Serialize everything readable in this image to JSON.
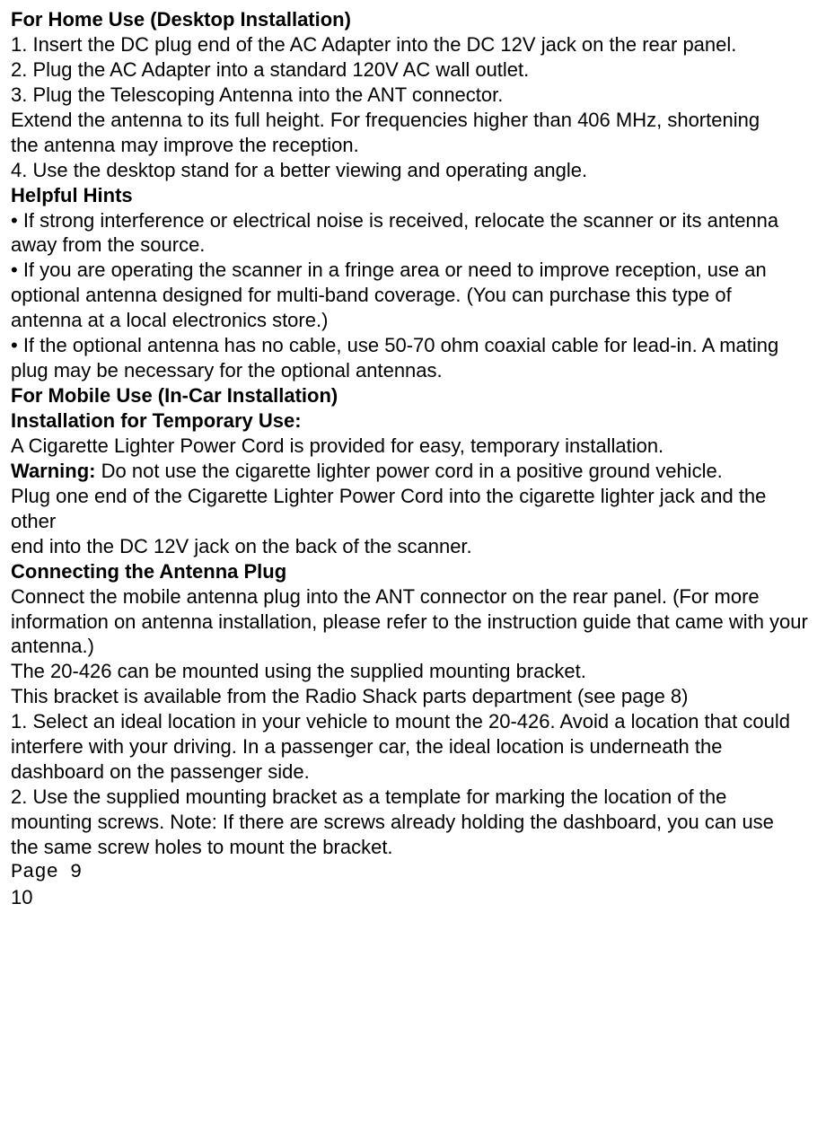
{
  "lines": [
    {
      "text": "For Home Use (Desktop Installation)",
      "bold": true
    },
    {
      "text": "1. Insert the DC plug end of the AC Adapter into the DC 12V jack on the rear panel."
    },
    {
      "text": "2. Plug the AC Adapter into a standard 120V AC wall outlet."
    },
    {
      "text": "3. Plug the Telescoping Antenna into the ANT connector."
    },
    {
      "text": "Extend the antenna to its full height. For frequencies higher than 406 MHz, shortening"
    },
    {
      "text": "the antenna may improve the reception."
    },
    {
      "text": "4. Use the desktop stand for a better viewing and operating angle."
    },
    {
      "text": "Helpful Hints",
      "bold": true
    },
    {
      "text": "• If strong interference or electrical noise is received, relocate the scanner or its antenna"
    },
    {
      "text": "away from the source."
    },
    {
      "text": "• If you are operating the scanner in a fringe area or need to improve reception, use an"
    },
    {
      "text": "optional antenna designed for multi-band coverage. (You can purchase this type of"
    },
    {
      "text": "antenna at a local electronics store.)"
    },
    {
      "text": "• If the optional antenna has no cable, use 50-70 ohm coaxial cable for lead-in. A mating"
    },
    {
      "text": "plug may be necessary for the optional antennas."
    },
    {
      "text": "For Mobile Use (In-Car Installation)",
      "bold": true
    },
    {
      "text": "Installation for Temporary Use:",
      "bold": true
    },
    {
      "text": "A Cigarette Lighter Power Cord is provided for easy, temporary installation."
    },
    {
      "boldPrefix": "Warning: ",
      "text": "Do not use the cigarette lighter power cord in a positive ground vehicle."
    },
    {
      "text": "Plug one end of the Cigarette Lighter Power Cord into the cigarette lighter jack and the other"
    },
    {
      "text": "end into the DC 12V jack on the back of the scanner."
    },
    {
      "text": "Connecting the Antenna Plug",
      "bold": true
    },
    {
      "text": "Connect the mobile antenna plug into the ANT connector on the rear panel. (For more"
    },
    {
      "text": "information on antenna installation, please refer to the instruction guide that came with your"
    },
    {
      "text": "antenna.)"
    },
    {
      "text": "The 20-426 can be mounted using the supplied mounting bracket."
    },
    {
      "text": "This bracket is available from the Radio Shack parts department (see page 8)"
    },
    {
      "text": "1. Select an ideal location in your vehicle to mount the 20-426. Avoid a location that could"
    },
    {
      "text": "interfere with your driving. In a passenger car, the ideal location is underneath the"
    },
    {
      "text": "dashboard on the passenger side."
    },
    {
      "text": "2. Use the supplied mounting bracket as a template for marking the location of the"
    },
    {
      "text": "mounting screws. Note: If there are screws already holding the dashboard, you can use"
    },
    {
      "text": "the same screw holes to mount the bracket."
    },
    {
      "text": "Page 9",
      "mono": true
    },
    {
      "text": "10"
    }
  ]
}
